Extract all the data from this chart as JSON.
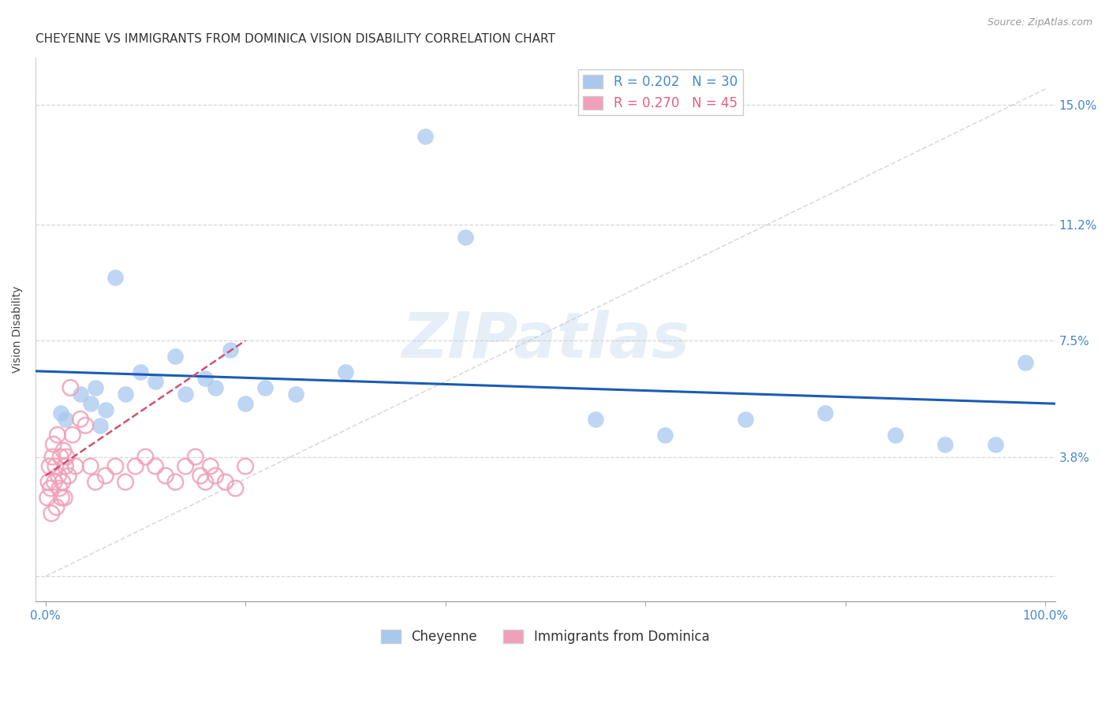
{
  "title": "CHEYENNE VS IMMIGRANTS FROM DOMINICA VISION DISABILITY CORRELATION CHART",
  "source": "Source: ZipAtlas.com",
  "ylabel": "Vision Disability",
  "ytick_vals": [
    0,
    3.8,
    7.5,
    11.2,
    15.0
  ],
  "ytick_labels": [
    "",
    "3.8%",
    "7.5%",
    "11.2%",
    "15.0%"
  ],
  "xlim": [
    -1,
    101
  ],
  "ylim": [
    -0.8,
    16.5
  ],
  "legend_r_entries": [
    {
      "label": "R = 0.202   N = 30",
      "color": "#a8c8f0"
    },
    {
      "label": "R = 0.270   N = 45",
      "color": "#f0a0b8"
    }
  ],
  "cheyenne_x": [
    1.5,
    2.0,
    3.5,
    4.5,
    5.0,
    5.5,
    6.0,
    7.0,
    8.0,
    9.5,
    11.0,
    13.0,
    14.0,
    16.0,
    17.0,
    18.5,
    20.0,
    22.0,
    25.0,
    30.0,
    38.0,
    42.0,
    55.0,
    62.0,
    70.0,
    78.0,
    85.0,
    90.0,
    95.0,
    98.0
  ],
  "cheyenne_y": [
    5.2,
    5.0,
    5.8,
    5.5,
    6.0,
    4.8,
    5.3,
    9.5,
    5.8,
    6.5,
    6.2,
    7.0,
    5.8,
    6.3,
    6.0,
    7.2,
    5.5,
    6.0,
    5.8,
    6.5,
    14.0,
    10.8,
    5.0,
    4.5,
    5.0,
    5.2,
    4.5,
    4.2,
    4.2,
    6.8
  ],
  "dominica_x": [
    0.2,
    0.3,
    0.4,
    0.5,
    0.6,
    0.7,
    0.8,
    0.9,
    1.0,
    1.1,
    1.2,
    1.3,
    1.4,
    1.5,
    1.6,
    1.7,
    1.8,
    1.9,
    2.0,
    2.1,
    2.3,
    2.5,
    2.7,
    3.0,
    3.5,
    4.0,
    4.5,
    5.0,
    6.0,
    7.0,
    8.0,
    9.0,
    10.0,
    11.0,
    12.0,
    13.0,
    14.0,
    15.0,
    15.5,
    16.0,
    16.5,
    17.0,
    18.0,
    19.0,
    20.0
  ],
  "dominica_y": [
    2.5,
    3.0,
    3.5,
    2.8,
    2.0,
    3.8,
    4.2,
    3.0,
    3.5,
    2.2,
    4.5,
    3.2,
    2.8,
    3.8,
    2.5,
    3.0,
    4.0,
    2.5,
    3.5,
    3.8,
    3.2,
    6.0,
    4.5,
    3.5,
    5.0,
    4.8,
    3.5,
    3.0,
    3.2,
    3.5,
    3.0,
    3.5,
    3.8,
    3.5,
    3.2,
    3.0,
    3.5,
    3.8,
    3.2,
    3.0,
    3.5,
    3.2,
    3.0,
    2.8,
    3.5
  ],
  "cheyenne_color": "#a8c8f0",
  "dominica_color": "#f0a0b8",
  "cheyenne_line_color": "#1a5cb5",
  "dominica_line_color": "#d05070",
  "diag_line_color": "#cccccc",
  "background_color": "#ffffff",
  "watermark_text": "ZIPatlas",
  "title_fontsize": 11,
  "axis_label_fontsize": 10,
  "tick_fontsize": 11,
  "source_fontsize": 9,
  "legend_fontsize": 12
}
